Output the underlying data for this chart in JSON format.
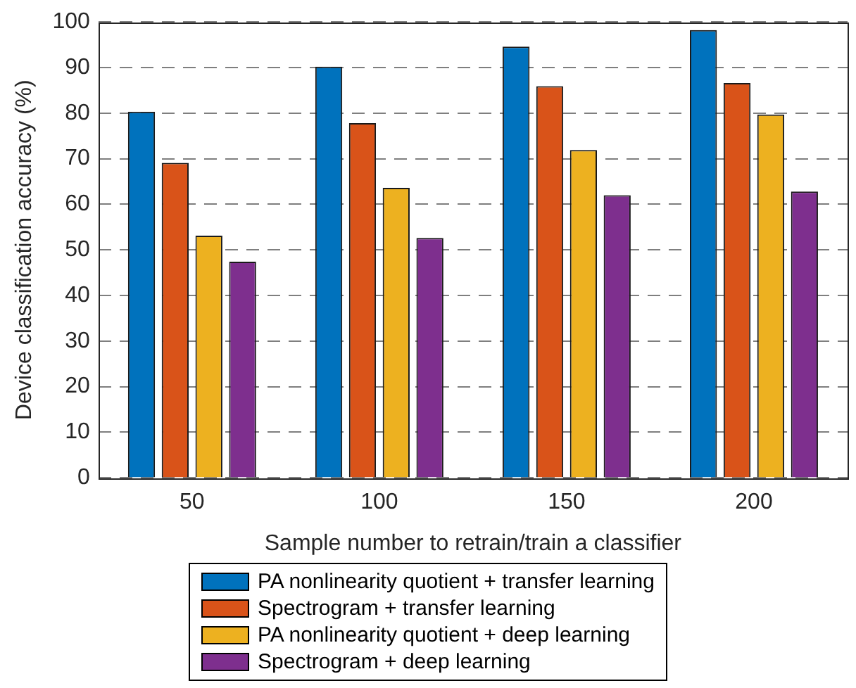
{
  "chart_data": {
    "type": "bar",
    "xlabel": "Sample number to retrain/train a classifier",
    "ylabel": "Device classification accuracy (%)",
    "categories": [
      "50",
      "100",
      "150",
      "200"
    ],
    "series": [
      {
        "name": "PA nonlinearity quotient + transfer learning",
        "color": "#0072bd",
        "values": [
          80.3,
          90.2,
          94.6,
          98.2
        ]
      },
      {
        "name": "Spectrogram + transfer learning",
        "color": "#d95319",
        "values": [
          69.1,
          77.8,
          85.9,
          86.6
        ]
      },
      {
        "name": "PA nonlinearity quotient + deep learning",
        "color": "#edb120",
        "values": [
          53.1,
          63.6,
          71.9,
          79.7
        ]
      },
      {
        "name": "Spectrogram + deep learning",
        "color": "#7e2f8e",
        "values": [
          47.4,
          52.6,
          62.0,
          62.8
        ]
      }
    ],
    "ylim": [
      0,
      100
    ],
    "yticks": [
      0,
      10,
      20,
      30,
      40,
      50,
      60,
      70,
      80,
      90,
      100
    ],
    "grid": "y",
    "legend": "bottom"
  }
}
